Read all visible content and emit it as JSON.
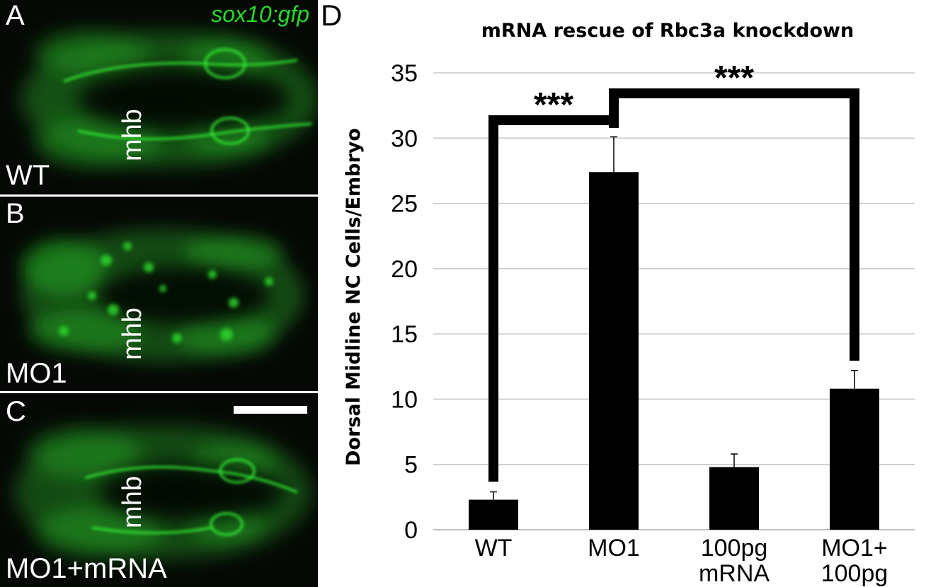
{
  "panels": {
    "a": {
      "letter": "A",
      "condition": "WT",
      "landmark": "mhb",
      "reporter": "sox10:gfp"
    },
    "b": {
      "letter": "B",
      "condition": "MO1",
      "landmark": "mhb"
    },
    "c": {
      "letter": "C",
      "condition": "MO1+mRNA",
      "landmark": "mhb",
      "scale_bar": true
    },
    "d": {
      "letter": "D"
    }
  },
  "colors": {
    "fluorescence": "#22dd22",
    "bars": "#000000",
    "grid": "#c8c8c8"
  },
  "chart_data": {
    "type": "bar",
    "title": "mRNA rescue of Rbc3a knockdown",
    "xlabel": "",
    "ylabel": "Dorsal Midline NC Cells/Embryo",
    "ylim": [
      0,
      35
    ],
    "yticks": [
      0,
      5,
      10,
      15,
      20,
      25,
      30,
      35
    ],
    "grid": true,
    "categories": [
      [
        "WT"
      ],
      [
        "MO1"
      ],
      [
        "100pg",
        "mRNA"
      ],
      [
        "MO1+",
        "100pg"
      ]
    ],
    "values": [
      2.3,
      27.4,
      4.8,
      10.8
    ],
    "errors": [
      0.6,
      2.7,
      1.0,
      1.4
    ],
    "significance": [
      {
        "from": 0,
        "to": 1,
        "label": "***"
      },
      {
        "from": 1,
        "to": 3,
        "label": "***"
      }
    ]
  }
}
